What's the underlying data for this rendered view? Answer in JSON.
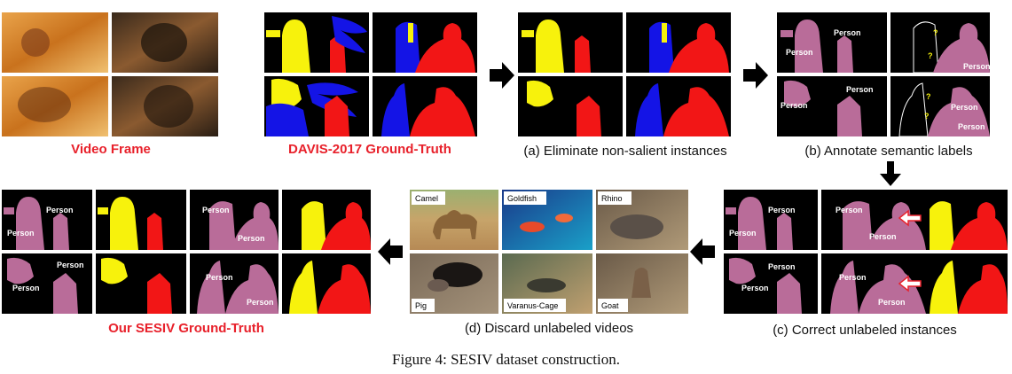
{
  "colors": {
    "yellow": "#f7f20c",
    "blue": "#1414e6",
    "red": "#f21616",
    "pink": "#b96c99",
    "black": "#000000",
    "caption_red": "#e8212b"
  },
  "video_frame": {
    "caption": "Video Frame"
  },
  "davis": {
    "caption": "DAVIS-2017 Ground-Truth"
  },
  "step_a": {
    "caption": "(a)  Eliminate non-salient instances"
  },
  "step_b": {
    "caption": "(b)  Annotate semantic labels",
    "labels": [
      "Person",
      "Person",
      "Person",
      "?",
      "?",
      "Person",
      "Person",
      "Person",
      "?",
      "?",
      "Person"
    ]
  },
  "step_c": {
    "caption": "(c)  Correct unlabeled instances",
    "labels": [
      "Person",
      "Person",
      "Person",
      "Person",
      "Person",
      "Person",
      "Person",
      "Person"
    ]
  },
  "step_d": {
    "caption": "(d)  Discard unlabeled videos",
    "tiles": [
      "Camel",
      "Goldfish",
      "Rhino",
      "Pig",
      "Varanus-Cage",
      "Goat"
    ]
  },
  "sesiv": {
    "caption": "Our SESIV Ground-Truth",
    "labels": [
      "Person",
      "Person",
      "Person",
      "Person",
      "Person",
      "Person",
      "Person",
      "Person"
    ]
  },
  "figure_caption": "Figure 4: SESIV dataset construction."
}
